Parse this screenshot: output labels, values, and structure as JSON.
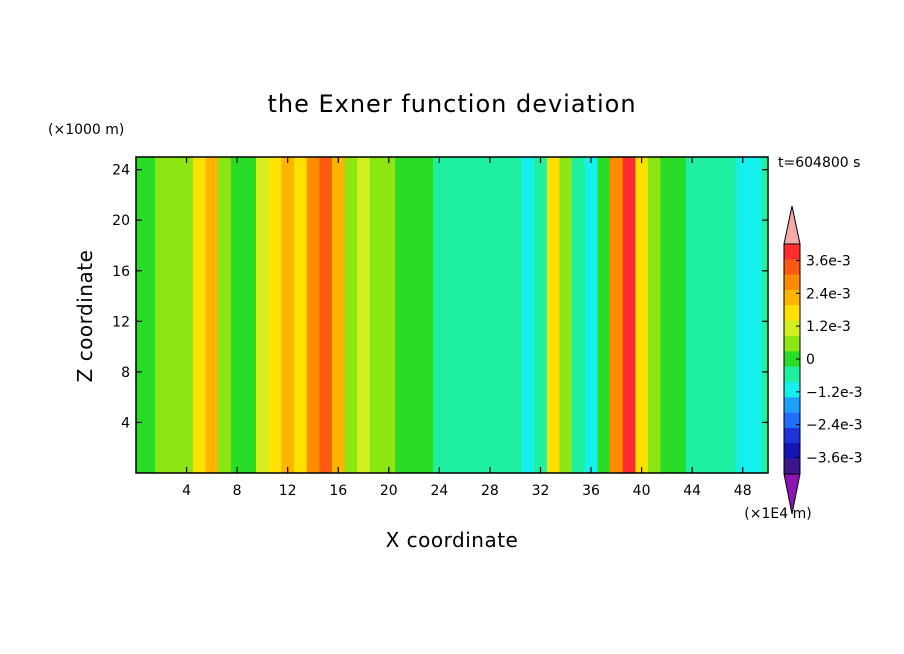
{
  "chart_data": {
    "type": "heatmap",
    "title": "the Exner function deviation",
    "xlabel": "X coordinate",
    "ylabel": "Z coordinate",
    "x_unit": "(×1E4 m)",
    "y_unit": "(×1000 m)",
    "time_label": "t=604800 s",
    "xlim": [
      0,
      50
    ],
    "ylim": [
      0,
      25
    ],
    "x_ticks": [
      4,
      8,
      12,
      16,
      20,
      24,
      28,
      32,
      36,
      40,
      44,
      48
    ],
    "y_ticks": [
      4,
      8,
      12,
      16,
      20,
      24
    ],
    "colorbar": {
      "labels": [
        "3.6e-3",
        "2.4e-3",
        "1.2e-3",
        "0",
        "−1.2e-3",
        "−2.4e-3",
        "−3.6e-3"
      ],
      "label_values": [
        0.0036,
        0.0024,
        0.0012,
        0,
        -0.0012,
        -0.0024,
        -0.0036
      ],
      "levels": [
        0.0042,
        0.0036,
        0.003,
        0.0024,
        0.0018,
        0.0012,
        0.0006,
        0,
        -0.0006,
        -0.0012,
        -0.0018,
        -0.0024,
        -0.003,
        -0.0036,
        -0.0042
      ],
      "colors": [
        "#ff2d2d",
        "#ff5a14",
        "#ff8c00",
        "#ffb400",
        "#ffe000",
        "#d2f01e",
        "#8ce614",
        "#28dc28",
        "#1ef0a0",
        "#14f0ee",
        "#1ea0ff",
        "#1e6eff",
        "#1e32dc",
        "#1414b4",
        "#3c148c"
      ],
      "over_color": "#f5a9a9",
      "under_color": "#8c14b4"
    },
    "x_profile": [
      [
        0,
        -0.0006
      ],
      [
        1,
        -0.0005
      ],
      [
        2,
        0.0001
      ],
      [
        3,
        0.0001
      ],
      [
        4,
        0.0003
      ],
      [
        5,
        0.0014
      ],
      [
        6,
        0.0022
      ],
      [
        7,
        0.0002
      ],
      [
        8,
        -0.0004
      ],
      [
        9,
        -0.0002
      ],
      [
        10,
        0.0006
      ],
      [
        11,
        0.0016
      ],
      [
        12,
        0.0019
      ],
      [
        13,
        0.0016
      ],
      [
        14,
        0.0026
      ],
      [
        15,
        0.0031
      ],
      [
        16,
        0.0022
      ],
      [
        17,
        0.0004
      ],
      [
        18,
        0.0008
      ],
      [
        19,
        0.0003
      ],
      [
        20,
        0.0
      ],
      [
        21,
        -0.0003
      ],
      [
        22,
        -0.0005
      ],
      [
        23,
        -0.0006
      ],
      [
        24,
        -0.0007
      ],
      [
        25,
        -0.0008
      ],
      [
        26,
        -0.0011
      ],
      [
        27,
        -0.0009
      ],
      [
        28,
        -0.0007
      ],
      [
        29,
        -0.0007
      ],
      [
        30,
        -0.0009
      ],
      [
        31,
        -0.0015
      ],
      [
        32,
        -0.0008
      ],
      [
        33,
        0.0014
      ],
      [
        34,
        0.0004
      ],
      [
        35,
        -0.0012
      ],
      [
        36,
        -0.0015
      ],
      [
        37,
        -0.0005
      ],
      [
        38,
        0.0026
      ],
      [
        39,
        0.0037
      ],
      [
        40,
        0.0016
      ],
      [
        41,
        0.0002
      ],
      [
        42,
        -0.0004
      ],
      [
        43,
        -0.0006
      ],
      [
        44,
        -0.0007
      ],
      [
        45,
        -0.0008
      ],
      [
        46,
        -0.0009
      ],
      [
        47,
        -0.0009
      ],
      [
        48,
        -0.0014
      ],
      [
        49,
        -0.0016
      ],
      [
        50,
        -0.0012
      ]
    ]
  }
}
